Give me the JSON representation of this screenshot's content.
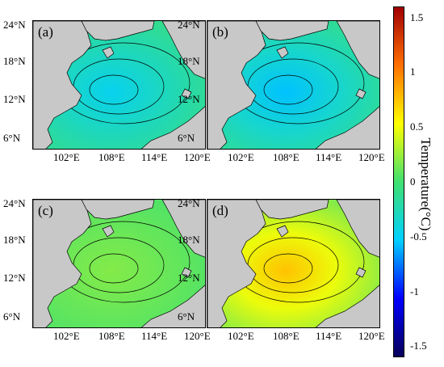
{
  "panels": [
    {
      "id": "a",
      "label": "(a)",
      "mean_anomaly": -0.25
    },
    {
      "id": "b",
      "label": "(b)",
      "mean_anomaly": -0.3
    },
    {
      "id": "c",
      "label": "(c)",
      "mean_anomaly": 0.1
    },
    {
      "id": "d",
      "label": "(d)",
      "mean_anomaly": 0.4
    }
  ],
  "axes": {
    "lat_labels": [
      "24°N",
      "18°N",
      "12°N",
      "6°N"
    ],
    "lon_labels": [
      "102°E",
      "108°E",
      "114°E",
      "120°E"
    ]
  },
  "colorbar": {
    "title": "Temperature(°C)",
    "ticks": [
      "1.5",
      "1",
      "0.5",
      "0",
      "-0.5",
      "-1",
      "-1.5"
    ],
    "range": [
      -1.6,
      1.6
    ],
    "colormap": "jet",
    "colors": [
      "#08005a",
      "#0000ff",
      "#00d0ff",
      "#40e070",
      "#ffff00",
      "#ff7000",
      "#a00000"
    ]
  },
  "map": {
    "land_color": "#c8c8c8",
    "ocean_colormap": "jet",
    "contour_color": "#000000"
  }
}
